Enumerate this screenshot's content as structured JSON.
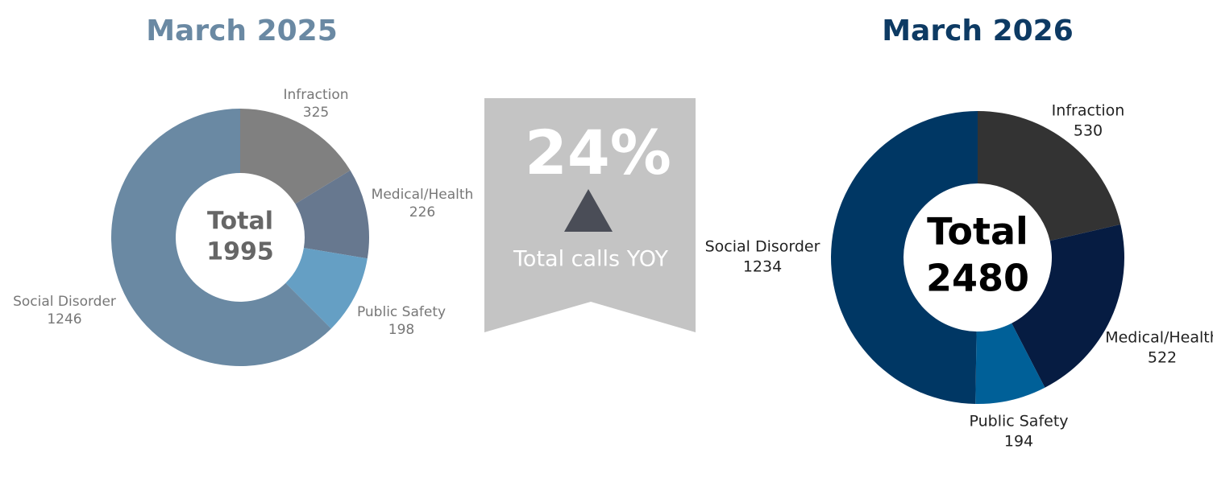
{
  "chart_data": [
    {
      "type": "donut",
      "title": "March 2025",
      "title_color": "#6a89a3",
      "categories": [
        "Infraction",
        "Medical/Health",
        "Public Safety",
        "Social Disorder"
      ],
      "values": [
        325,
        226,
        198,
        1246
      ],
      "colors": [
        "#808080",
        "#67788f",
        "#659fc4",
        "#6a89a3"
      ],
      "center_label": "Total",
      "total": 1995
    },
    {
      "type": "donut",
      "title": "March 2026",
      "title_color": "#0d3a63",
      "categories": [
        "Infraction",
        "Medical/Health",
        "Public Safety",
        "Social Disorder"
      ],
      "values": [
        530,
        522,
        194,
        1234
      ],
      "colors": [
        "#333333",
        "#061c42",
        "#006098",
        "#003764"
      ],
      "center_label": "Total",
      "total": 2480
    }
  ],
  "banner": {
    "value": "24%",
    "text": "Total calls YOY"
  }
}
